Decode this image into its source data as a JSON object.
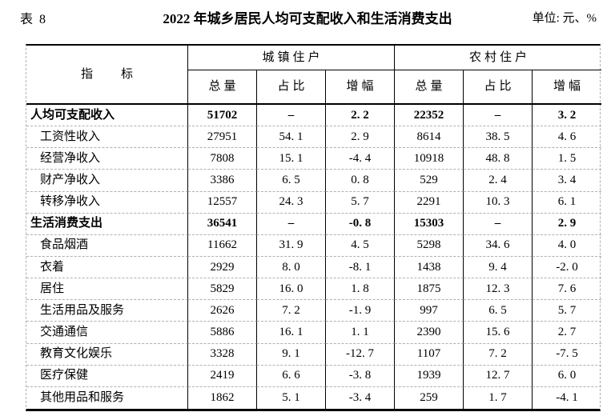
{
  "header": {
    "table_label": "表 8",
    "title": "2022 年城乡居民人均可支配收入和生活消费支出",
    "unit": "单位: 元、%"
  },
  "table": {
    "indicator_header": "指　标",
    "groups": [
      {
        "label": "城镇住户"
      },
      {
        "label": "农村住户"
      }
    ],
    "sub_headers": {
      "total": "总量",
      "share": "占比",
      "growth": "增幅"
    },
    "rows": [
      {
        "indicator": "人均可支配收入",
        "bold": true,
        "urban": [
          "51702",
          "–",
          "2. 2"
        ],
        "rural": [
          "22352",
          "–",
          "3. 2"
        ]
      },
      {
        "indicator": "工资性收入",
        "bold": false,
        "urban": [
          "27951",
          "54. 1",
          "2. 9"
        ],
        "rural": [
          "8614",
          "38. 5",
          "4. 6"
        ]
      },
      {
        "indicator": "经营净收入",
        "bold": false,
        "urban": [
          "7808",
          "15. 1",
          "-4. 4"
        ],
        "rural": [
          "10918",
          "48. 8",
          "1. 5"
        ]
      },
      {
        "indicator": "财产净收入",
        "bold": false,
        "urban": [
          "3386",
          "6. 5",
          "0. 8"
        ],
        "rural": [
          "529",
          "2. 4",
          "3. 4"
        ]
      },
      {
        "indicator": "转移净收入",
        "bold": false,
        "urban": [
          "12557",
          "24. 3",
          "5. 7"
        ],
        "rural": [
          "2291",
          "10. 3",
          "6. 1"
        ]
      },
      {
        "indicator": "生活消费支出",
        "bold": true,
        "urban": [
          "36541",
          "–",
          "-0. 8"
        ],
        "rural": [
          "15303",
          "–",
          "2. 9"
        ]
      },
      {
        "indicator": "食品烟酒",
        "bold": false,
        "urban": [
          "11662",
          "31. 9",
          "4. 5"
        ],
        "rural": [
          "5298",
          "34. 6",
          "4. 0"
        ]
      },
      {
        "indicator": "衣着",
        "bold": false,
        "urban": [
          "2929",
          "8. 0",
          "-8. 1"
        ],
        "rural": [
          "1438",
          "9. 4",
          "-2. 0"
        ]
      },
      {
        "indicator": "居住",
        "bold": false,
        "urban": [
          "5829",
          "16. 0",
          "1. 8"
        ],
        "rural": [
          "1875",
          "12. 3",
          "7. 6"
        ]
      },
      {
        "indicator": "生活用品及服务",
        "bold": false,
        "urban": [
          "2626",
          "7. 2",
          "-1. 9"
        ],
        "rural": [
          "997",
          "6. 5",
          "5. 7"
        ]
      },
      {
        "indicator": "交通通信",
        "bold": false,
        "urban": [
          "5886",
          "16. 1",
          "1. 1"
        ],
        "rural": [
          "2390",
          "15. 6",
          "2. 7"
        ]
      },
      {
        "indicator": "教育文化娱乐",
        "bold": false,
        "urban": [
          "3328",
          "9. 1",
          "-12. 7"
        ],
        "rural": [
          "1107",
          "7. 2",
          "-7. 5"
        ]
      },
      {
        "indicator": "医疗保健",
        "bold": false,
        "urban": [
          "2419",
          "6. 6",
          "-3. 8"
        ],
        "rural": [
          "1939",
          "12. 7",
          "6. 0"
        ]
      },
      {
        "indicator": "其他用品和服务",
        "bold": false,
        "urban": [
          "1862",
          "5. 1",
          "-3. 4"
        ],
        "rural": [
          "259",
          "1. 7",
          "-4. 1"
        ]
      }
    ]
  },
  "colors": {
    "text": "#000000",
    "solid_border": "#000000",
    "dashed_border": "#b0b0b0",
    "background": "#ffffff"
  }
}
